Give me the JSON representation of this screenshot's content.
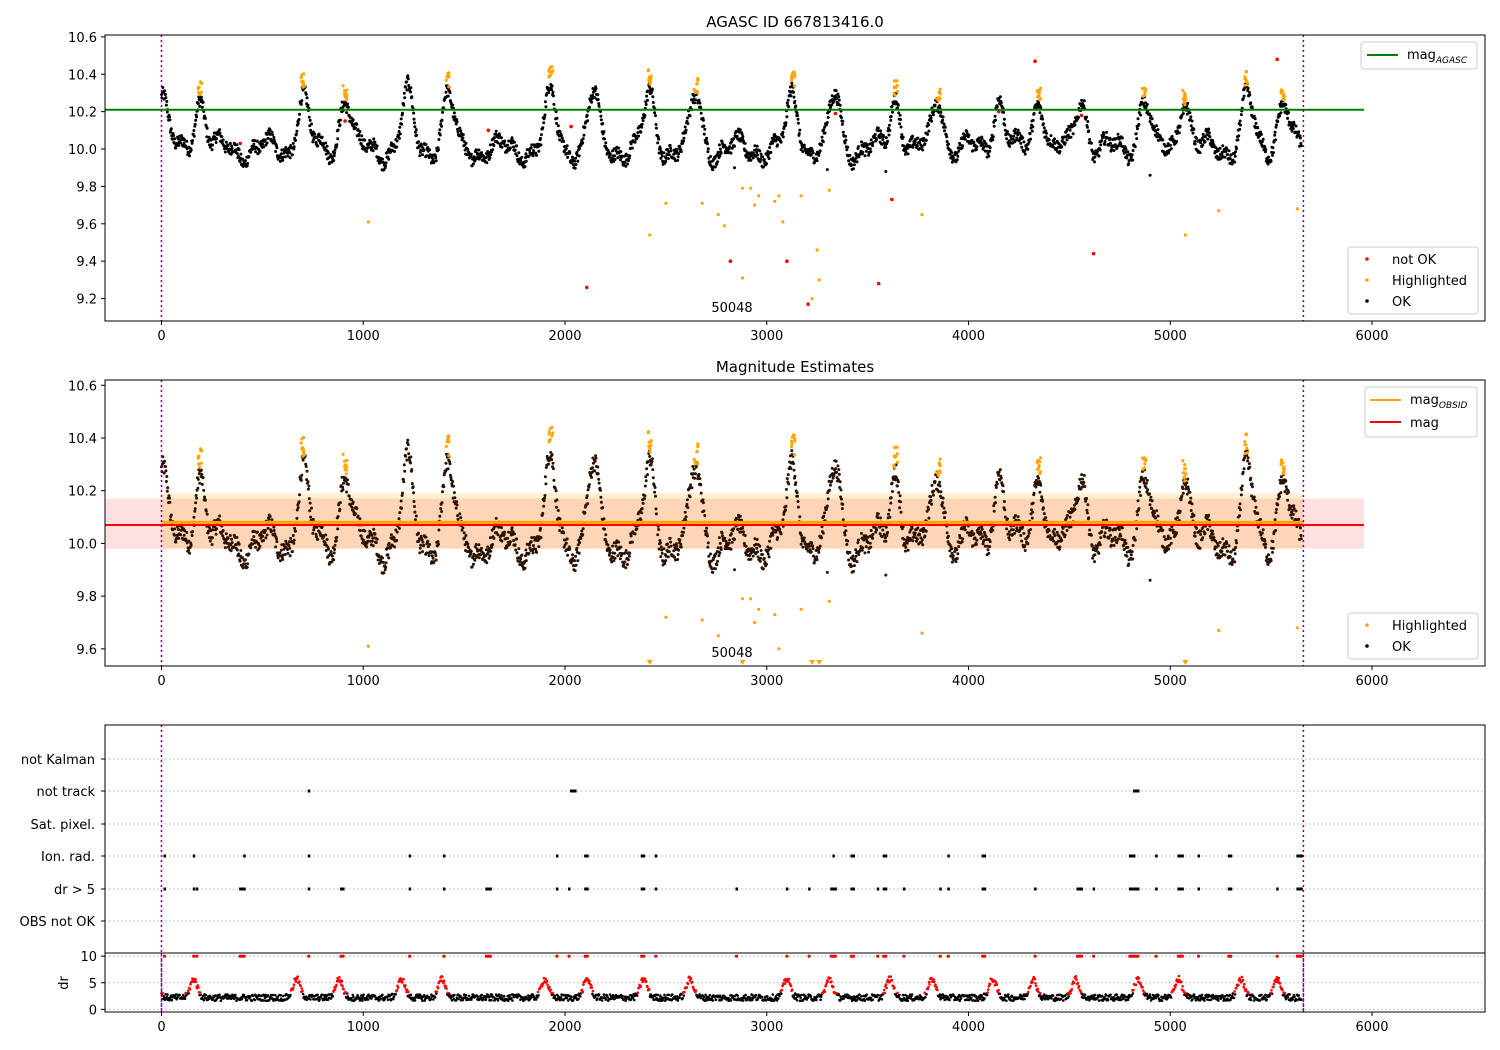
{
  "chart_data": [
    {
      "type": "scatter",
      "title": "AGASC ID 667813416.0",
      "xlim": [
        -280,
        6560
      ],
      "ylim": [
        9.08,
        10.61
      ],
      "xticks": [
        "0",
        "1000",
        "2000",
        "3000",
        "4000",
        "5000",
        "6000"
      ],
      "yticks": [
        "9.2",
        "9.4",
        "9.6",
        "9.8",
        "10.0",
        "10.2",
        "10.4",
        "10.6"
      ],
      "vlines": [
        0,
        5660
      ],
      "annotation": {
        "text": "50048",
        "x": 2840,
        "y": 9.13
      },
      "mag_agasc": {
        "name": "mag_AGASC",
        "label_main": "mag",
        "label_sub": "AGASC",
        "y": 10.21,
        "x_range": [
          -280,
          5960
        ],
        "color": "#008000"
      },
      "series": [
        {
          "name": "not OK",
          "color": "#ff0000",
          "points": [
            [
              2108,
              9.26
            ],
            [
              2820,
              9.4
            ],
            [
              3100,
              9.4
            ],
            [
              3205,
              9.17
            ],
            [
              3555,
              9.28
            ],
            [
              3620,
              9.73
            ],
            [
              4620,
              9.44
            ],
            [
              4330,
              10.47
            ],
            [
              5530,
              10.48
            ],
            [
              390,
              10.03
            ],
            [
              910,
              10.15
            ],
            [
              1620,
              10.1
            ],
            [
              2030,
              10.12
            ],
            [
              3340,
              10.19
            ],
            [
              4560,
              10.18
            ],
            [
              4150,
              10.2
            ]
          ]
        },
        {
          "name": "Highlighted",
          "color": "#ffa500",
          "points": [
            [
              1025,
              9.61
            ],
            [
              2420,
              9.54
            ],
            [
              2500,
              9.71
            ],
            [
              2680,
              9.71
            ],
            [
              2760,
              9.65
            ],
            [
              2790,
              9.59
            ],
            [
              2880,
              9.79
            ],
            [
              2920,
              9.79
            ],
            [
              2940,
              9.7
            ],
            [
              2960,
              9.75
            ],
            [
              3040,
              9.72
            ],
            [
              3060,
              9.75
            ],
            [
              3080,
              9.61
            ],
            [
              3170,
              9.75
            ],
            [
              3225,
              9.2
            ],
            [
              3250,
              9.46
            ],
            [
              3260,
              9.3
            ],
            [
              3310,
              9.78
            ],
            [
              3770,
              9.65
            ],
            [
              5075,
              9.54
            ],
            [
              5240,
              9.67
            ],
            [
              5630,
              9.68
            ],
            [
              2880,
              9.31
            ]
          ]
        },
        {
          "name": "OK",
          "color": "#000000",
          "points": []
        }
      ],
      "legend": {
        "position": "lower right",
        "entries": [
          "not OK",
          "Highlighted",
          "OK"
        ]
      }
    },
    {
      "type": "scatter",
      "title": "Magnitude Estimates",
      "xlim": [
        -280,
        6560
      ],
      "ylim": [
        9.535,
        10.62
      ],
      "xticks": [
        "0",
        "1000",
        "2000",
        "3000",
        "4000",
        "5000",
        "6000"
      ],
      "yticks": [
        "9.6",
        "9.8",
        "10.0",
        "10.2",
        "10.4",
        "10.6"
      ],
      "vlines": [
        0,
        5660
      ],
      "annotation": {
        "text": "50048",
        "x": 2840,
        "y": 9.6
      },
      "mag_obsid": {
        "name": "mag_OBSID",
        "label_main": "mag",
        "label_sub": "OBSID",
        "y": 10.08,
        "band": [
          9.98,
          10.19
        ],
        "color": "#ffa500"
      },
      "mag": {
        "name": "mag",
        "y": 10.07,
        "band": [
          9.98,
          10.17
        ],
        "x_range": [
          -280,
          5960
        ],
        "color": "#ff0000"
      },
      "series": [
        {
          "name": "Highlighted",
          "color": "#ffa500",
          "points": [
            [
              1025,
              9.61
            ],
            [
              2500,
              9.72
            ],
            [
              2680,
              9.71
            ],
            [
              2760,
              9.65
            ],
            [
              2880,
              9.79
            ],
            [
              2920,
              9.79
            ],
            [
              2940,
              9.7
            ],
            [
              2960,
              9.75
            ],
            [
              3040,
              9.73
            ],
            [
              3060,
              9.6
            ],
            [
              3170,
              9.75
            ],
            [
              3310,
              9.78
            ],
            [
              3770,
              9.66
            ],
            [
              5240,
              9.67
            ],
            [
              5630,
              9.68
            ]
          ]
        },
        {
          "name": "OK",
          "color": "#000000",
          "points": []
        }
      ],
      "below_range_markers": [
        2420,
        2880,
        3225,
        3260,
        5075
      ],
      "legend": {
        "position": "lower right",
        "entries": [
          "Highlighted",
          "OK"
        ]
      },
      "legend_top": {
        "position": "upper right",
        "entries": [
          "mag_OBSID",
          "mag"
        ]
      }
    },
    {
      "type": "scatter",
      "title": "",
      "xlim": [
        -280,
        6560
      ],
      "vlines": [
        0,
        5660
      ],
      "categories": [
        "not Kalman",
        "not track",
        "Sat. pixel.",
        "Ion. rad.",
        "dr > 5",
        "OBS not OK"
      ],
      "flags": {
        "not Kalman": [],
        "not track": [
          730,
          2030,
          2040,
          2050,
          4820,
          4830,
          4840
        ],
        "Sat. pixel.": [],
        "Ion. rad.": [
          15,
          160,
          410,
          730,
          1230,
          1400,
          1960,
          2100,
          2110,
          2380,
          2390,
          2450,
          3330,
          3420,
          3430,
          3580,
          3590,
          3900,
          4070,
          4080,
          4800,
          4810,
          4820,
          4930,
          5040,
          5050,
          5060,
          5140,
          5290,
          5300,
          5630,
          5640,
          5650
        ],
        "dr > 5": [
          15,
          160,
          175,
          390,
          400,
          410,
          730,
          890,
          900,
          1230,
          1400,
          1610,
          1620,
          1630,
          1960,
          2020,
          2100,
          2110,
          2380,
          2390,
          2450,
          2850,
          3100,
          3210,
          3320,
          3330,
          3340,
          3420,
          3430,
          3550,
          3580,
          3590,
          3680,
          3860,
          3900,
          4070,
          4080,
          4330,
          4540,
          4550,
          4560,
          4620,
          4800,
          4810,
          4820,
          4830,
          4840,
          4930,
          5040,
          5050,
          5060,
          5140,
          5290,
          5300,
          5530,
          5630,
          5640,
          5650
        ],
        "OBS not OK": []
      }
    },
    {
      "type": "scatter",
      "title": "",
      "ylabel": "dr",
      "xlim": [
        -280,
        6560
      ],
      "ylim": [
        -0.5,
        10.6
      ],
      "xticks": [
        "0",
        "1000",
        "2000",
        "3000",
        "4000",
        "5000",
        "6000"
      ],
      "yticks": [
        "0",
        "5",
        "10"
      ],
      "vlines": [
        0,
        5660
      ],
      "series": [
        {
          "name": "dr",
          "color": "#000000",
          "points": []
        },
        {
          "name": "dr (flagged)",
          "color": "#ff0000",
          "points": []
        }
      ]
    }
  ]
}
